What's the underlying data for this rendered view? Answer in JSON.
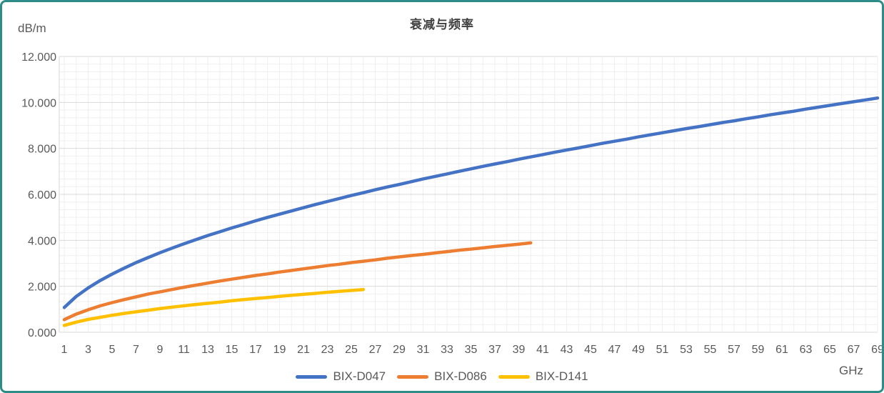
{
  "chart_data": {
    "type": "line",
    "title": "衰减与频率",
    "ylabel": "dB/m",
    "xlabel": "GHz",
    "xlim": [
      1,
      69
    ],
    "ylim": [
      0,
      12
    ],
    "x_ticks": [
      1,
      3,
      5,
      7,
      9,
      11,
      13,
      15,
      17,
      19,
      21,
      23,
      25,
      27,
      29,
      31,
      33,
      35,
      37,
      39,
      41,
      43,
      45,
      47,
      49,
      51,
      53,
      55,
      57,
      59,
      61,
      63,
      65,
      67,
      69
    ],
    "y_ticks": [
      {
        "value": 0,
        "label": "0.000"
      },
      {
        "value": 2,
        "label": "2.000"
      },
      {
        "value": 4,
        "label": "4.000"
      },
      {
        "value": 6,
        "label": "6.000"
      },
      {
        "value": 8,
        "label": "8.000"
      },
      {
        "value": 10,
        "label": "10.000"
      },
      {
        "value": 12,
        "label": "12.000"
      }
    ],
    "grid": {
      "grid_on": true,
      "minor_x_step_ghz": 1,
      "minor_y_divisions_per_major": 6,
      "major_y_step": 2
    },
    "legend_position": "bottom-center",
    "series": [
      {
        "name": "BIX-D047",
        "color": "#4472C4",
        "x": [
          1,
          2,
          3,
          4,
          5,
          6,
          7,
          8,
          9,
          10,
          11,
          12,
          13,
          14,
          15,
          16,
          17,
          18,
          19,
          20,
          21,
          22,
          23,
          24,
          25,
          26,
          27,
          28,
          29,
          30,
          31,
          32,
          33,
          34,
          35,
          36,
          37,
          38,
          39,
          40,
          41,
          42,
          43,
          44,
          45,
          46,
          47,
          48,
          49,
          50,
          51,
          52,
          53,
          54,
          55,
          56,
          57,
          58,
          59,
          60,
          61,
          62,
          63,
          64,
          65,
          66,
          67,
          68,
          69
        ],
        "y": [
          1.08,
          1.56,
          1.93,
          2.25,
          2.53,
          2.79,
          3.03,
          3.25,
          3.46,
          3.66,
          3.85,
          4.03,
          4.21,
          4.37,
          4.54,
          4.69,
          4.85,
          5.0,
          5.14,
          5.28,
          5.42,
          5.56,
          5.69,
          5.82,
          5.95,
          6.07,
          6.2,
          6.32,
          6.43,
          6.55,
          6.67,
          6.78,
          6.89,
          7.0,
          7.11,
          7.22,
          7.32,
          7.42,
          7.53,
          7.63,
          7.73,
          7.83,
          7.93,
          8.02,
          8.12,
          8.22,
          8.31,
          8.4,
          8.5,
          8.59,
          8.68,
          8.77,
          8.86,
          8.94,
          9.03,
          9.12,
          9.2,
          9.29,
          9.37,
          9.46,
          9.54,
          9.62,
          9.71,
          9.79,
          9.87,
          9.95,
          10.03,
          10.11,
          10.19
        ]
      },
      {
        "name": "BIX-D086",
        "color": "#ED7D31",
        "x": [
          1,
          2,
          3,
          4,
          5,
          6,
          7,
          8,
          9,
          10,
          11,
          12,
          13,
          14,
          15,
          16,
          17,
          18,
          19,
          20,
          21,
          22,
          23,
          24,
          25,
          26,
          27,
          28,
          29,
          30,
          31,
          32,
          33,
          34,
          35,
          36,
          37,
          38,
          39,
          40
        ],
        "y": [
          0.55,
          0.79,
          0.98,
          1.15,
          1.29,
          1.42,
          1.54,
          1.66,
          1.76,
          1.86,
          1.96,
          2.05,
          2.14,
          2.23,
          2.31,
          2.39,
          2.47,
          2.54,
          2.62,
          2.69,
          2.76,
          2.83,
          2.9,
          2.96,
          3.03,
          3.09,
          3.15,
          3.22,
          3.28,
          3.34,
          3.39,
          3.45,
          3.51,
          3.57,
          3.62,
          3.67,
          3.73,
          3.78,
          3.83,
          3.89
        ]
      },
      {
        "name": "BIX-D141",
        "color": "#FFC000",
        "x": [
          1,
          2,
          3,
          4,
          5,
          6,
          7,
          8,
          9,
          10,
          11,
          12,
          13,
          14,
          15,
          16,
          17,
          18,
          19,
          20,
          21,
          22,
          23,
          24,
          25,
          26
        ],
        "y": [
          0.3,
          0.44,
          0.56,
          0.65,
          0.74,
          0.82,
          0.89,
          0.96,
          1.03,
          1.09,
          1.15,
          1.21,
          1.26,
          1.31,
          1.37,
          1.42,
          1.47,
          1.51,
          1.56,
          1.61,
          1.65,
          1.69,
          1.74,
          1.78,
          1.82,
          1.86
        ]
      }
    ]
  },
  "colors": {
    "background": "#FFFFFF",
    "border": "#2E8C88",
    "title_text": "#404040",
    "axis_text": "#595959",
    "grid_major": "#D9D9D9",
    "grid_minor": "#EFEFEF"
  }
}
